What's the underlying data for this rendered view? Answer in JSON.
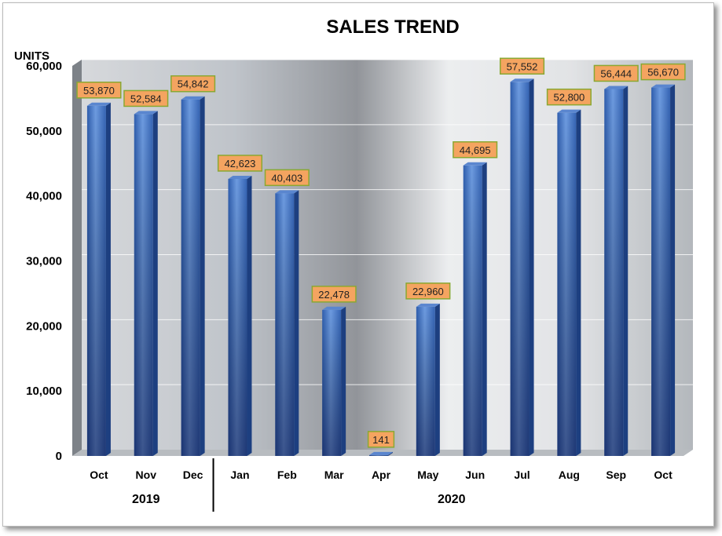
{
  "chart_data": {
    "type": "bar",
    "title": "SALES TREND",
    "ylabel": "UNITS",
    "xlabel": "",
    "ylim": [
      0,
      60000
    ],
    "yticks": [
      0,
      10000,
      20000,
      30000,
      40000,
      50000,
      60000
    ],
    "ytick_labels": [
      "0",
      "10,000",
      "20,000",
      "30,000",
      "40,000",
      "50,000",
      "60,000"
    ],
    "grid": true,
    "categories": [
      "Oct",
      "Nov",
      "Dec",
      "Jan",
      "Feb",
      "Mar",
      "Apr",
      "May",
      "Jun",
      "Jul",
      "Aug",
      "Sep",
      "Oct"
    ],
    "values": [
      53870,
      52584,
      54842,
      42623,
      40403,
      22478,
      141,
      22960,
      44695,
      57552,
      52800,
      56444,
      56670
    ],
    "data_labels": [
      "53,870",
      "52,584",
      "54,842",
      "42,623",
      "40,403",
      "22,478",
      "141",
      "22,960",
      "44,695",
      "57,552",
      "52,800",
      "56,444",
      "56,670"
    ],
    "groups": [
      {
        "label": "2019",
        "count": 3
      },
      {
        "label": "2020",
        "count": 10
      }
    ],
    "colors": {
      "bar": "#3f72c4",
      "bar_dark": "#1d3f80",
      "label_fill": "#f4a460",
      "label_border": "#8aa832"
    }
  }
}
